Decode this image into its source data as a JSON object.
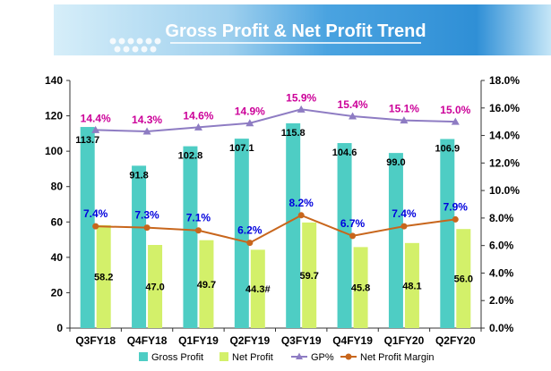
{
  "colors": {
    "banner_light": "#d3edf9",
    "banner_dark": "#2b8dd3",
    "gross_profit": "#4ecdc4",
    "net_profit": "#d3f06a",
    "gp_pct": "#8e7cc3",
    "net_margin": "#c8661c",
    "gp_label": "#cc0099",
    "np_label": "#0000dd"
  },
  "chart_data": {
    "type": "bar+line",
    "title": "Gross Profit & Net Profit Trend",
    "categories": [
      "Q3FY18",
      "Q4FY18",
      "Q1FY19",
      "Q2FY19",
      "Q3FY19",
      "Q4FY19",
      "Q1FY20",
      "Q2FY20"
    ],
    "left_axis": {
      "min": 0,
      "max": 140,
      "step": 20,
      "ticks": [
        "0",
        "20",
        "40",
        "60",
        "80",
        "100",
        "120",
        "140"
      ]
    },
    "right_axis": {
      "min": 0,
      "max": 18,
      "step": 2,
      "ticks": [
        "0.0%",
        "2.0%",
        "4.0%",
        "6.0%",
        "8.0%",
        "10.0%",
        "12.0%",
        "14.0%",
        "16.0%",
        "18.0%"
      ]
    },
    "series": [
      {
        "name": "Gross Profit",
        "type": "bar",
        "axis": "left",
        "values": [
          113.7,
          91.8,
          102.8,
          107.1,
          115.8,
          104.6,
          99.0,
          106.9
        ],
        "labels": [
          "113.7",
          "91.8",
          "102.8",
          "107.1",
          "115.8",
          "104.6",
          "99.0",
          "106.9"
        ]
      },
      {
        "name": "Net Profit",
        "type": "bar",
        "axis": "left",
        "values": [
          58.2,
          47.0,
          49.7,
          44.3,
          59.7,
          45.8,
          48.1,
          56.0
        ],
        "labels": [
          "58.2",
          "47.0",
          "49.7",
          "44.3#",
          "59.7",
          "45.8",
          "48.1",
          "56.0"
        ]
      },
      {
        "name": "GP%",
        "type": "line",
        "axis": "right",
        "values": [
          14.4,
          14.3,
          14.6,
          14.9,
          15.9,
          15.4,
          15.1,
          15.0
        ],
        "labels": [
          "14.4%",
          "14.3%",
          "14.6%",
          "14.9%",
          "15.9%",
          "15.4%",
          "15.1%",
          "15.0%"
        ]
      },
      {
        "name": "Net Profit Margin",
        "type": "line",
        "axis": "right",
        "values": [
          7.4,
          7.3,
          7.1,
          6.2,
          8.2,
          6.7,
          7.4,
          7.9
        ],
        "labels": [
          "7.4%",
          "7.3%",
          "7.1%",
          "6.2%",
          "8.2%",
          "6.7%",
          "7.4%",
          "7.9%"
        ]
      }
    ],
    "legend": {
      "position": "bottom",
      "items": [
        "Gross Profit",
        "Net Profit",
        "GP%",
        "Net Profit Margin"
      ]
    }
  }
}
